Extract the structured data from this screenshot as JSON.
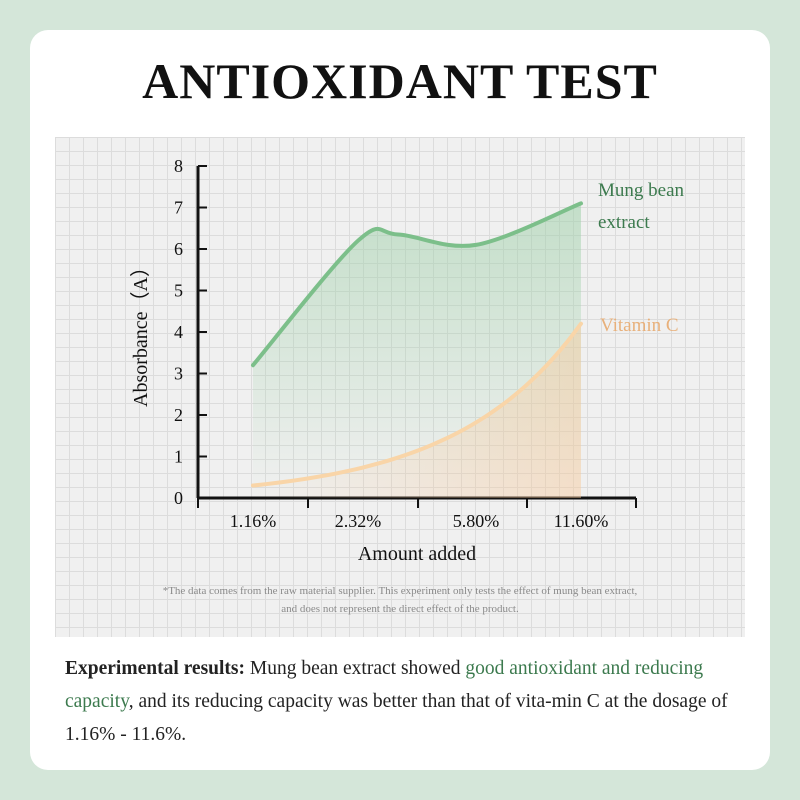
{
  "title": "ANTIOXIDANT TEST",
  "footnote": {
    "line1": "*The data comes from the raw material supplier. This experiment only tests the effect of mung bean extract,",
    "line2": "and does not represent the direct effect of the product."
  },
  "results": {
    "lead": "Experimental results:",
    "text1": " Mung bean extract showed ",
    "highlight": "good antioxidant and reducing capacity",
    "text2": ", and its reducing capacity was better than that of vita-min C at the dosage of 1.16% - 11.6%."
  },
  "colors": {
    "mung": "#7cbf8a",
    "mung_label": "#3c7a4e",
    "vitc": "#f9d5a8",
    "vitc_label": "#e8b07a",
    "axis": "#111111",
    "background": "#d4e6d9"
  },
  "chart_data": {
    "type": "line",
    "categories": [
      "1.16%",
      "2.32%",
      "5.80%",
      "11.60%"
    ],
    "xlabel": "Amount added",
    "ylabel": "Absorbance（A）",
    "ylim": [
      0,
      8
    ],
    "yticks": [
      0,
      1,
      2,
      3,
      4,
      5,
      6,
      7,
      8
    ],
    "grid": true,
    "series": [
      {
        "name": "Mung bean extract",
        "name_lines": [
          "Mung bean",
          "extract"
        ],
        "x": [
          1.16,
          2.32,
          3.5,
          5.8,
          11.6
        ],
        "values": [
          3.2,
          6.2,
          6.35,
          6.1,
          7.1
        ]
      },
      {
        "name": "Vitamin C",
        "name_lines": [
          "Vitamin C"
        ],
        "x": [
          1.16,
          2.32,
          5.8,
          11.6
        ],
        "values": [
          0.3,
          0.55,
          1.4,
          4.2
        ]
      }
    ]
  }
}
